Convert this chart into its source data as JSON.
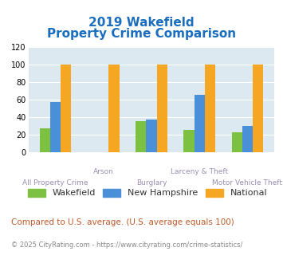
{
  "title_line1": "2019 Wakefield",
  "title_line2": "Property Crime Comparison",
  "categories": [
    "All Property Crime",
    "Arson",
    "Burglary",
    "Larceny & Theft",
    "Motor Vehicle Theft"
  ],
  "wakefield": [
    28,
    0,
    36,
    26,
    23
  ],
  "new_hampshire": [
    58,
    0,
    38,
    66,
    30
  ],
  "national": [
    100,
    100,
    100,
    100,
    100
  ],
  "color_wakefield": "#7dc142",
  "color_nh": "#4a90d9",
  "color_national": "#f5a623",
  "ylim": [
    0,
    120
  ],
  "yticks": [
    0,
    20,
    40,
    60,
    80,
    100,
    120
  ],
  "background_color": "#dce9f0",
  "title_color": "#1a6ebd",
  "xlabel_color": "#9b8fb0",
  "footnote1": "Compared to U.S. average. (U.S. average equals 100)",
  "footnote2": "© 2025 CityRating.com - https://www.cityrating.com/crime-statistics/",
  "footnote1_color": "#c05a2a",
  "footnote2_color": "#888888",
  "legend_labels": [
    "Wakefield",
    "New Hampshire",
    "National"
  ],
  "bar_width": 0.22
}
